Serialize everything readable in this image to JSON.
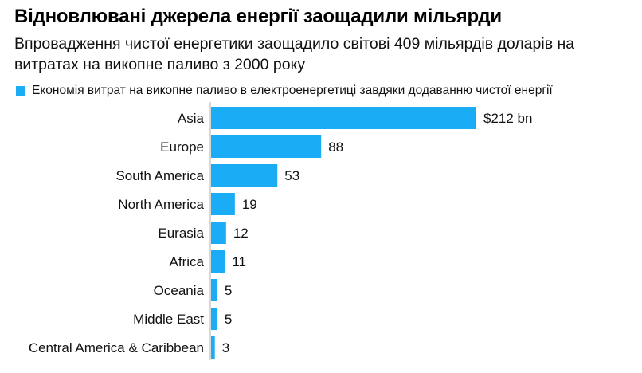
{
  "chart_data": {
    "type": "bar",
    "orientation": "horizontal",
    "title": "Відновлювані джерела енергії заощадили мільярди",
    "subtitle": "Впровадження чистої енергетики заощадило світові 409 мільярдів доларів на витратах на викопне паливо з 2000 року",
    "categories": [
      "Asia",
      "Europe",
      "South America",
      "North America",
      "Eurasia",
      "Africa",
      "Oceania",
      "Middle East",
      "Central America & Caribbean"
    ],
    "series": [
      {
        "name": "Економія витрат на викопне паливо в електроенергетиці завдяки додаванню чистої енергії",
        "values": [
          212,
          88,
          53,
          19,
          12,
          11,
          5,
          5,
          3
        ],
        "color": "#1aadf5"
      }
    ],
    "value_labels": [
      "$212 bn",
      "88",
      "53",
      "19",
      "12",
      "11",
      "5",
      "5",
      "3"
    ],
    "xlim": [
      0,
      212
    ],
    "legend_position": "top-left",
    "grid": false
  }
}
